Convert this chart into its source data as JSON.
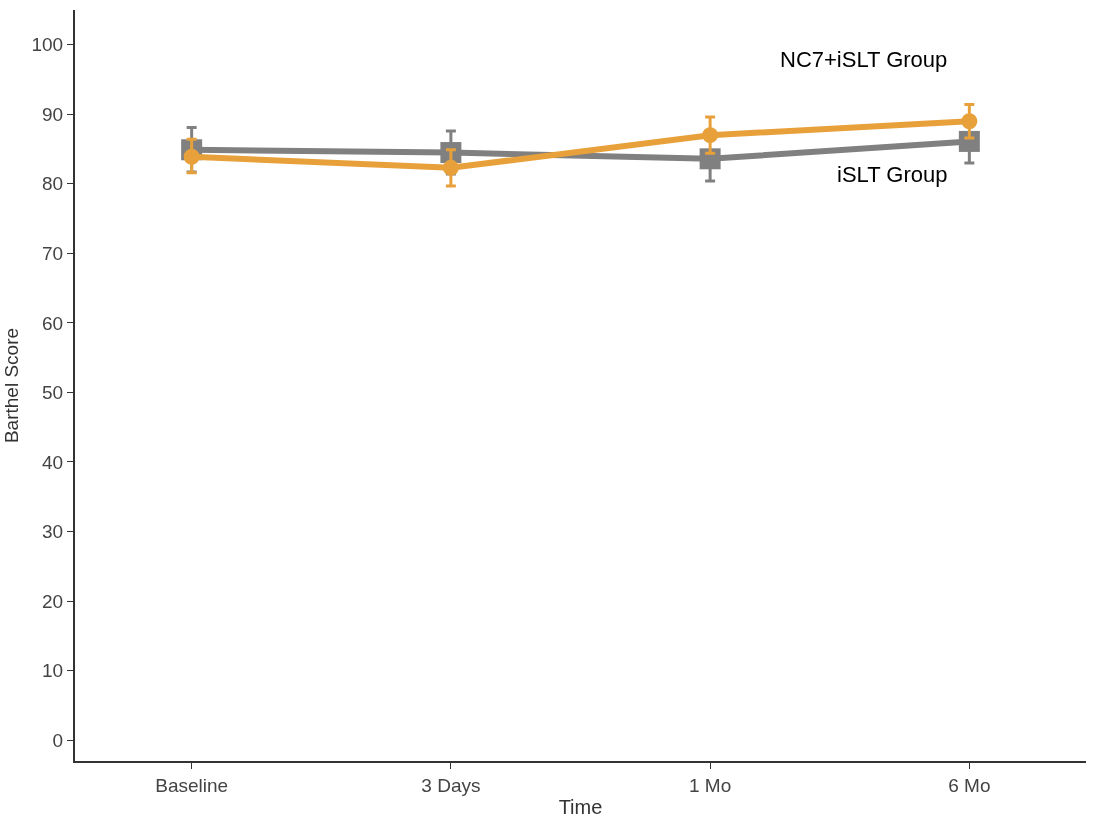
{
  "chart_data": {
    "type": "line",
    "xlabel": "Time",
    "ylabel": "Barthel Score",
    "categories": [
      "Baseline",
      "3 Days",
      "1 Mo",
      "6 Mo"
    ],
    "ylim": [
      -3,
      105
    ],
    "yticks": [
      0,
      10,
      20,
      30,
      40,
      50,
      60,
      70,
      80,
      90,
      100
    ],
    "legend": false,
    "line_style": "solid",
    "series": [
      {
        "name": "iSLT Group",
        "color": "#808080",
        "marker": "square",
        "values": [
          84.9,
          84.5,
          83.6,
          86.1
        ],
        "errors": [
          [
            81.7,
            88.1
          ],
          [
            81.4,
            87.6
          ],
          [
            80.4,
            83.6
          ],
          [
            83.0,
            86.1
          ]
        ]
      },
      {
        "name": "NC7+iSLT Group",
        "color": "#e8a13a",
        "marker": "circle",
        "values": [
          83.9,
          82.3,
          87.0,
          89.0
        ],
        "errors": [
          [
            81.6,
            86.4
          ],
          [
            79.7,
            84.9
          ],
          [
            84.4,
            89.6
          ],
          [
            86.6,
            91.4
          ]
        ]
      }
    ]
  }
}
